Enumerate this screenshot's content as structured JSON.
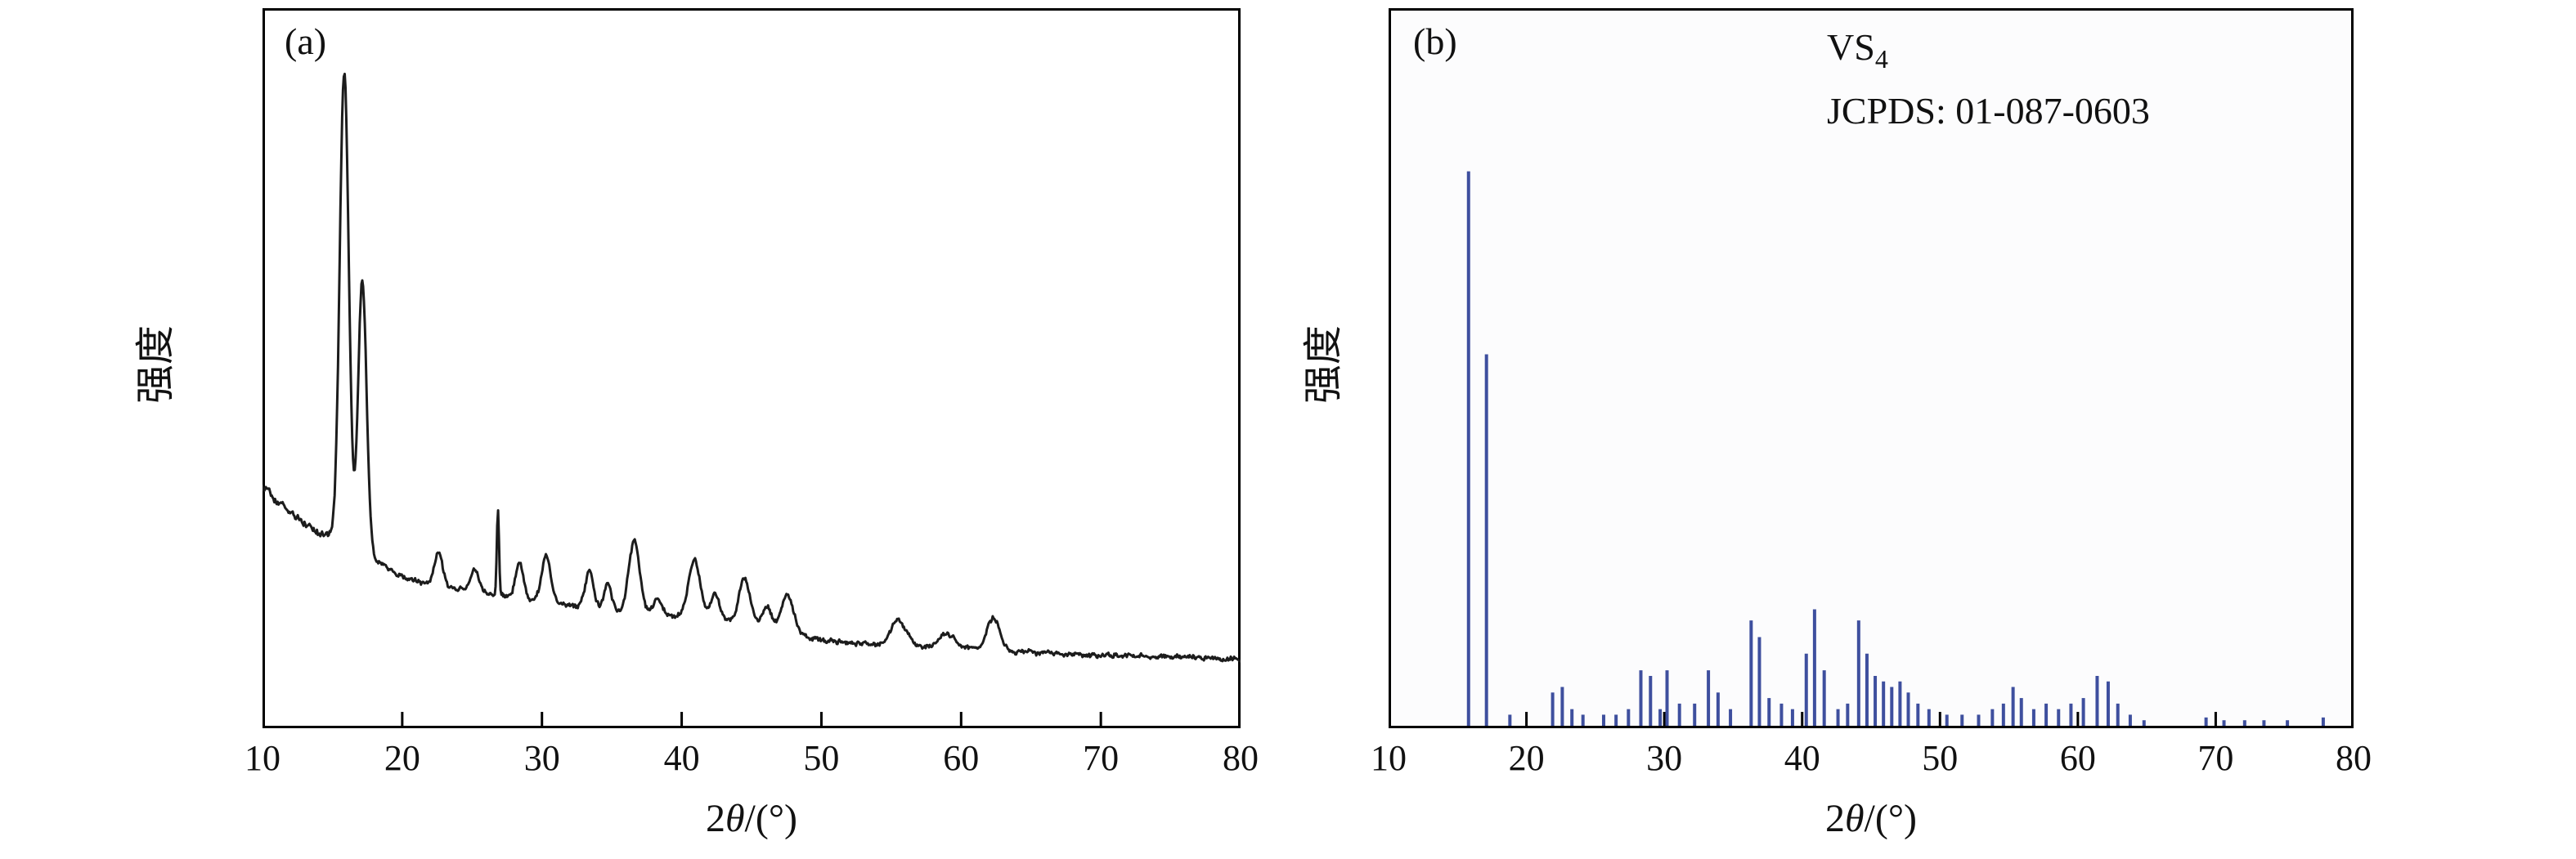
{
  "page": {
    "background": "#ffffff"
  },
  "chart_data": [
    {
      "id": "a",
      "type": "line",
      "panel_label": "(a)",
      "xlabel": "2θ/(°)",
      "xlabel_parts": {
        "num": "2",
        "theta": "θ",
        "rest": "/(°)"
      },
      "ylabel": "强度",
      "xlim": [
        10,
        80
      ],
      "x_ticks": [
        10,
        20,
        30,
        40,
        50,
        60,
        70,
        80
      ],
      "y_axis": "intensity (arbitrary units, unlabeled)",
      "line_color": "#1c1c1c",
      "frame_color": "#000000",
      "baseline_points": [
        [
          10,
          0.335
        ],
        [
          12,
          0.3
        ],
        [
          14,
          0.272
        ],
        [
          18,
          0.235
        ],
        [
          20,
          0.21
        ],
        [
          25,
          0.19
        ],
        [
          30,
          0.176
        ],
        [
          35,
          0.165
        ],
        [
          40,
          0.155
        ],
        [
          45,
          0.148
        ],
        [
          48,
          0.135
        ],
        [
          50,
          0.122
        ],
        [
          55,
          0.115
        ],
        [
          60,
          0.112
        ],
        [
          65,
          0.105
        ],
        [
          70,
          0.101
        ],
        [
          75,
          0.1
        ],
        [
          80,
          0.096
        ]
      ],
      "peaks": [
        [
          15.85,
          0.66,
          0.32
        ],
        [
          17.15,
          0.38,
          0.3
        ],
        [
          22.6,
          0.045,
          0.28
        ],
        [
          25.2,
          0.03,
          0.3
        ],
        [
          26.85,
          0.115,
          0.08
        ],
        [
          28.4,
          0.05,
          0.28
        ],
        [
          30.3,
          0.065,
          0.32
        ],
        [
          33.4,
          0.05,
          0.3
        ],
        [
          34.7,
          0.035,
          0.25
        ],
        [
          36.6,
          0.1,
          0.38
        ],
        [
          38.3,
          0.02,
          0.3
        ],
        [
          40.9,
          0.08,
          0.42
        ],
        [
          42.4,
          0.035,
          0.3
        ],
        [
          44.5,
          0.06,
          0.38
        ],
        [
          46.1,
          0.025,
          0.3
        ],
        [
          47.6,
          0.05,
          0.38
        ],
        [
          55.5,
          0.035,
          0.55
        ],
        [
          59.0,
          0.018,
          0.5
        ],
        [
          62.3,
          0.045,
          0.45
        ]
      ],
      "noise_amp": 0.008,
      "seed": 20240611
    },
    {
      "id": "b",
      "type": "bar",
      "panel_label": "(b)",
      "annotation": {
        "phase_base": "VS",
        "phase_sub": "4",
        "jcpds": "JCPDS: 01-087-0603"
      },
      "xlabel": "2θ/(°)",
      "xlabel_parts": {
        "num": "2",
        "theta": "θ",
        "rest": "/(°)"
      },
      "ylabel": "强度",
      "xlim": [
        10,
        80
      ],
      "x_ticks": [
        10,
        20,
        30,
        40,
        50,
        60,
        70,
        80
      ],
      "bar_color": "#3e4f9e",
      "max_bar_fraction": 0.77,
      "sticks": [
        [
          15.8,
          100
        ],
        [
          17.1,
          67
        ],
        [
          18.8,
          2
        ],
        [
          21.9,
          6
        ],
        [
          22.6,
          7
        ],
        [
          23.3,
          3
        ],
        [
          24.1,
          2
        ],
        [
          25.6,
          2
        ],
        [
          26.5,
          2
        ],
        [
          27.4,
          3
        ],
        [
          28.3,
          10
        ],
        [
          29.0,
          9
        ],
        [
          29.7,
          3
        ],
        [
          30.2,
          10
        ],
        [
          31.1,
          4
        ],
        [
          32.2,
          4
        ],
        [
          33.2,
          10
        ],
        [
          33.9,
          6
        ],
        [
          34.8,
          3
        ],
        [
          36.3,
          19
        ],
        [
          36.9,
          16
        ],
        [
          37.6,
          5
        ],
        [
          38.5,
          4
        ],
        [
          39.3,
          3
        ],
        [
          40.3,
          13
        ],
        [
          40.9,
          21
        ],
        [
          41.6,
          10
        ],
        [
          42.6,
          3
        ],
        [
          43.3,
          4
        ],
        [
          44.1,
          19
        ],
        [
          44.7,
          13
        ],
        [
          45.3,
          9
        ],
        [
          45.9,
          8
        ],
        [
          46.5,
          7
        ],
        [
          47.1,
          8
        ],
        [
          47.7,
          6
        ],
        [
          48.4,
          4
        ],
        [
          49.2,
          3
        ],
        [
          50.5,
          2
        ],
        [
          51.6,
          2
        ],
        [
          52.8,
          2
        ],
        [
          53.8,
          3
        ],
        [
          54.6,
          4
        ],
        [
          55.3,
          7
        ],
        [
          55.9,
          5
        ],
        [
          56.8,
          3
        ],
        [
          57.7,
          4
        ],
        [
          58.6,
          3
        ],
        [
          59.5,
          4
        ],
        [
          60.4,
          5
        ],
        [
          61.4,
          9
        ],
        [
          62.2,
          8
        ],
        [
          62.9,
          4
        ],
        [
          63.8,
          2
        ],
        [
          64.8,
          1
        ],
        [
          69.3,
          1.5
        ],
        [
          70.6,
          1
        ],
        [
          72.1,
          1
        ],
        [
          73.5,
          1
        ],
        [
          75.2,
          1
        ],
        [
          77.8,
          1.5
        ]
      ]
    }
  ]
}
